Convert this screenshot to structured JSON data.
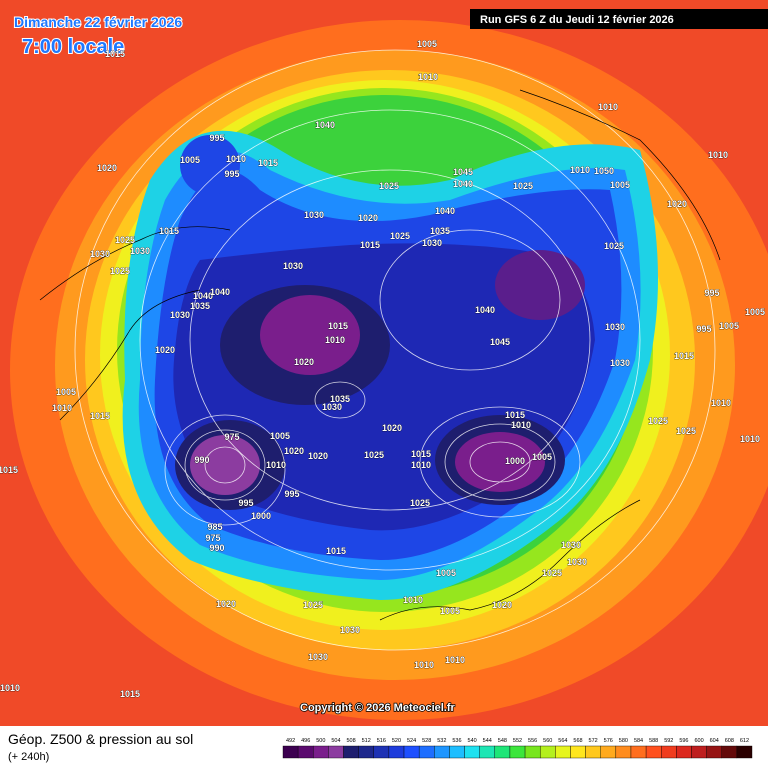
{
  "header": {
    "date": "Dimanche 22 février 2026",
    "time": "7:00 locale",
    "run": "Run GFS 6 Z du Jeudi 12 février 2026"
  },
  "map": {
    "copyright": "Copyright © 2026 Meteociel.fr",
    "pressure_labels": [
      1015,
      1005,
      1010,
      1040,
      995,
      1005,
      1010,
      1015,
      995,
      1020,
      1010,
      1010,
      1045,
      1040,
      1025,
      1010,
      1050,
      1005,
      1020,
      1030,
      1020,
      1025,
      1040,
      1035,
      1025,
      1015,
      1030,
      1015,
      1025,
      1030,
      1030,
      1025,
      1030,
      1025,
      995,
      1040,
      1040,
      1035,
      1030,
      1015,
      1010,
      1040,
      1045,
      1030,
      995,
      1005,
      1005,
      1020,
      1020,
      1015,
      1030,
      1005,
      1010,
      1015,
      1035,
      1030,
      1010,
      1015,
      1010,
      1020,
      1025,
      1025,
      1010,
      975,
      1005,
      1020,
      1025,
      1015,
      1010,
      1000,
      1005,
      1020,
      990,
      1015,
      1010,
      995,
      995,
      1000,
      1025,
      985,
      975,
      990,
      1015,
      1030,
      1030,
      1025,
      1005,
      1020,
      1025,
      1010,
      1005,
      1020,
      1030,
      1030,
      1010,
      1010,
      1010,
      1015
    ]
  },
  "footer": {
    "title": "Géop. Z500 & pression au sol",
    "lead": "(+ 240h)"
  },
  "colorbar": {
    "labels": [
      492,
      496,
      500,
      504,
      508,
      512,
      516,
      520,
      524,
      528,
      532,
      536,
      540,
      544,
      548,
      552,
      556,
      560,
      564,
      568,
      572,
      576,
      580,
      584,
      588,
      592,
      596,
      600,
      604,
      608,
      612
    ],
    "colors": [
      "#3c0050",
      "#5a0a6e",
      "#7a1e8c",
      "#8c3ca0",
      "#1e1e6e",
      "#1e288c",
      "#1e32b4",
      "#1e3cdc",
      "#1e50ff",
      "#1e6eff",
      "#1e96ff",
      "#1ebeff",
      "#1ee1f0",
      "#1ee6b4",
      "#1ee678",
      "#3ce63c",
      "#78e61e",
      "#b4f01e",
      "#e6f51e",
      "#ffe61e",
      "#ffc81e",
      "#ffaa1e",
      "#ff8c1e",
      "#ff6e1e",
      "#ff501e",
      "#f03c1e",
      "#dc281e",
      "#be1e1e",
      "#961414",
      "#640a0a",
      "#2a0000"
    ]
  }
}
